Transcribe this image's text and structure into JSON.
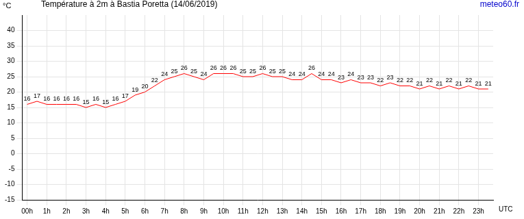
{
  "chart_data": {
    "type": "line",
    "title": "Température à 2m à Bastia Poretta (14/06/2019)",
    "credit": "meteo60.fr",
    "ylabel": "°C",
    "xlabel": "UTC",
    "categories": [
      "00h",
      null,
      "1h",
      null,
      "2h",
      null,
      "3h",
      null,
      "4h",
      null,
      "5h",
      null,
      "6h",
      null,
      "7h",
      null,
      "8h",
      null,
      "9h",
      null,
      "10h",
      null,
      "11h",
      null,
      "12h",
      null,
      "13h",
      null,
      "14h",
      null,
      "15h",
      null,
      "16h",
      null,
      "17h",
      null,
      "18h",
      null,
      "19h",
      null,
      "20h",
      null,
      "21h",
      null,
      "22h",
      null,
      "23h",
      null
    ],
    "values": [
      16,
      17,
      16,
      16,
      16,
      16,
      15,
      16,
      15,
      16,
      17,
      19,
      20,
      22,
      24,
      25,
      26,
      25,
      24,
      26,
      26,
      26,
      25,
      25,
      26,
      25,
      25,
      24,
      24,
      26,
      24,
      24,
      23,
      24,
      23,
      23,
      22,
      23,
      22,
      22,
      21,
      22,
      21,
      22,
      21,
      22,
      21,
      21
    ],
    "color": "#ff0000",
    "ylim": [
      -15,
      45
    ],
    "yticks": [
      -15,
      -10,
      -5,
      0,
      5,
      10,
      15,
      20,
      25,
      30,
      35,
      40
    ],
    "grid": true,
    "data_labels": true
  }
}
